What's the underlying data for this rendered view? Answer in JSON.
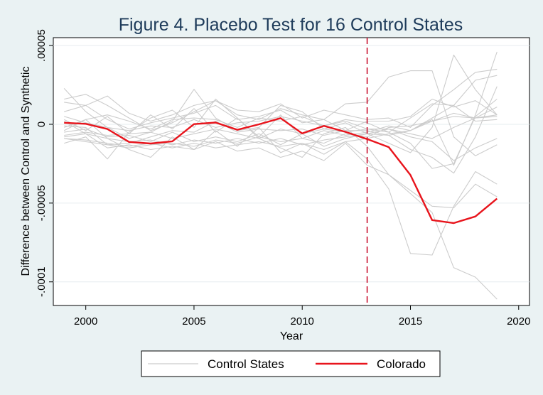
{
  "chart_data": {
    "type": "line",
    "title": "Figure 4. Placebo Test for 16 Control States",
    "xlabel": "Year",
    "ylabel": "Difference between Control and Synthetic",
    "xlim": [
      1998.5,
      2020.5
    ],
    "ylim": [
      -0.000115,
      5.5e-05
    ],
    "xticks": [
      2000,
      2005,
      2010,
      2015,
      2020
    ],
    "xtick_labels": [
      "2000",
      "2005",
      "2010",
      "2015",
      "2020"
    ],
    "yticks": [
      -0.0001,
      -5e-05,
      0,
      5e-05
    ],
    "ytick_labels": [
      "-.0001",
      "-.00005",
      "0",
      ".00005"
    ],
    "grid": "horizontal",
    "vline": {
      "x": 2013,
      "style": "dashed",
      "color": "#c8102e"
    },
    "legend": {
      "position": "bottom",
      "entries": [
        "Control States",
        "Colorado"
      ]
    },
    "colors": {
      "control": "#cccccc",
      "treated": "#e8141c",
      "background": "#eaf2f3",
      "plot_background": "#ffffff",
      "title": "#1e3b5a"
    },
    "x": [
      1999,
      2000,
      2001,
      2002,
      2003,
      2004,
      2005,
      2006,
      2007,
      2008,
      2009,
      2010,
      2011,
      2012,
      2013,
      2014,
      2015,
      2016,
      2017,
      2018,
      2019
    ],
    "series": [
      {
        "name": "Colorado",
        "role": "treated",
        "values": [
          1e-06,
          3e-07,
          -3e-06,
          -1.12e-05,
          -1.22e-05,
          -1.08e-05,
          1e-07,
          1.1e-06,
          -3.5e-06,
          0.0,
          3.9e-06,
          -5.8e-06,
          -1e-06,
          -4.8e-06,
          -9.4e-06,
          -1.45e-05,
          -3.22e-05,
          -6.08e-05,
          -6.27e-05,
          -5.85e-05,
          -4.72e-05
        ]
      },
      {
        "name": "",
        "role": "control",
        "values": [
          2.28e-05,
          8e-06,
          -2e-06,
          -9e-06,
          -5e-06,
          2e-06,
          2.22e-05,
          4e-06,
          -4e-06,
          -2e-06,
          1.2e-05,
          8e-06,
          -3e-06,
          1e-06,
          -6e-06,
          -1.2e-05,
          -1.8e-05,
          -2e-06,
          4.4e-05,
          2.2e-05,
          6e-06
        ]
      },
      {
        "name": "",
        "role": "control",
        "values": [
          1.6e-05,
          1.9e-05,
          1.2e-05,
          4e-06,
          -4e-06,
          1e-06,
          8e-06,
          1.5e-05,
          6e-06,
          3e-06,
          1e-05,
          6e-06,
          3e-06,
          1.3e-05,
          1.4e-05,
          3e-05,
          3.4e-05,
          3.4e-05,
          -8e-06,
          -2e-05,
          -1.3e-05
        ]
      },
      {
        "name": "",
        "role": "control",
        "values": [
          -1.2e-05,
          -8e-06,
          -2.2e-05,
          -5e-06,
          4e-06,
          9e-06,
          -2e-06,
          1.6e-05,
          4e-06,
          -9e-06,
          -1.5e-05,
          -2.1e-05,
          -6e-06,
          -2e-06,
          -1.4e-05,
          -3.2e-05,
          -4.4e-05,
          -5.6e-05,
          -9.1e-05,
          -9.7e-05,
          -0.000111
        ]
      },
      {
        "name": "",
        "role": "control",
        "values": [
          -4e-06,
          3e-06,
          -9e-06,
          -1.6e-05,
          -2.1e-05,
          -8e-06,
          -1.6e-05,
          -4e-06,
          -1.4e-05,
          -2e-06,
          -1.8e-05,
          -1.2e-05,
          -1.9e-05,
          -1.1e-05,
          -2.2e-05,
          -4.1e-05,
          -8.2e-05,
          -8.3e-05,
          -5.2e-05,
          -3e-05,
          -3.8e-05
        ]
      },
      {
        "name": "",
        "role": "control",
        "values": [
          -8e-06,
          -6e-06,
          -1.5e-05,
          -1.3e-05,
          -1.6e-05,
          -1.4e-05,
          -1.6e-05,
          -1.1e-05,
          -1.7e-05,
          -1.5e-05,
          -2.1e-05,
          -1.7e-05,
          -2.3e-05,
          -1.2e-05,
          -2.6e-05,
          -3.2e-05,
          -4.2e-05,
          -5.2e-05,
          -5.3e-05,
          -3.8e-05,
          -4.6e-05
        ]
      },
      {
        "name": "",
        "role": "control",
        "values": [
          3e-06,
          -4e-06,
          5e-06,
          -6e-06,
          6e-06,
          -3e-06,
          1e-05,
          -5e-06,
          4e-06,
          -8e-06,
          6e-06,
          -9e-06,
          -4e-06,
          -7e-06,
          -5e-06,
          -1e-06,
          -4e-06,
          3e-06,
          -2.6e-05,
          6e-06,
          4.6e-05
        ]
      },
      {
        "name": "",
        "role": "control",
        "values": [
          8e-06,
          1.2e-05,
          1.8e-05,
          7e-06,
          2e-06,
          6e-06,
          1.2e-05,
          1.5e-05,
          9e-06,
          8e-06,
          1.3e-05,
          4e-06,
          9e-06,
          6e-06,
          3e-06,
          4e-06,
          -2e-06,
          1.2e-05,
          2.2e-05,
          3.3e-05,
          3.5e-05
        ]
      },
      {
        "name": "",
        "role": "control",
        "values": [
          -2e-06,
          3e-06,
          6e-06,
          2e-06,
          -3e-06,
          3e-06,
          4e-06,
          3e-06,
          -2e-06,
          4e-06,
          2e-06,
          5e-06,
          -1e-06,
          3e-06,
          1e-06,
          -5e-06,
          -1.2e-05,
          -2.8e-05,
          -2.5e-05,
          5e-06,
          1.6e-05
        ]
      },
      {
        "name": "",
        "role": "control",
        "values": [
          -1e-06,
          -2e-06,
          -1.3e-05,
          -1.2e-05,
          -8e-06,
          -4e-06,
          -5e-06,
          2e-06,
          -5e-06,
          -3e-06,
          -4e-06,
          -3e-06,
          -7e-06,
          -4e-06,
          -4e-06,
          -7e-06,
          -1.6e-05,
          -2.1e-05,
          -3.1e-05,
          -8e-06,
          2.4e-05
        ]
      },
      {
        "name": "",
        "role": "control",
        "values": [
          -5e-06,
          -3e-06,
          -8e-06,
          -7e-06,
          -1.1e-05,
          -5e-06,
          -1.1e-05,
          -8e-06,
          -1.1e-05,
          -6e-06,
          -1.3e-05,
          -6e-06,
          -1.4e-05,
          -9e-06,
          -6e-06,
          -7e-06,
          -4e-06,
          2e-06,
          7e-06,
          4e-06,
          6e-06
        ]
      },
      {
        "name": "",
        "role": "control",
        "values": [
          5e-06,
          1e-06,
          -2e-06,
          -4e-06,
          -1e-06,
          -2e-06,
          3e-06,
          -2e-06,
          1e-06,
          2e-06,
          5e-06,
          2e-06,
          -1e-06,
          2e-06,
          -3e-06,
          -3e-06,
          -8e-06,
          -1.1e-05,
          -2.3e-05,
          -1.5e-05,
          -9e-06
        ]
      },
      {
        "name": "",
        "role": "control",
        "values": [
          -9e-06,
          -1e-05,
          -1.2e-05,
          -1.4e-05,
          -1.2e-05,
          -1.5e-05,
          -1.2e-05,
          -1.5e-05,
          -1.3e-05,
          -1.1e-05,
          -1.4e-05,
          -1.2e-05,
          -1.6e-05,
          -1.1e-05,
          -9e-06,
          -6e-06,
          -4e-06,
          4e-06,
          1.2e-05,
          2.8e-05,
          3.1e-05
        ]
      },
      {
        "name": "",
        "role": "control",
        "values": [
          2e-06,
          -6e-06,
          -9e-06,
          -1.1e-05,
          -1e-05,
          -1.3e-05,
          -1e-05,
          -1.2e-05,
          -9e-06,
          -1.2e-05,
          -9e-06,
          -1.3e-05,
          -1e-05,
          -8e-06,
          -6e-06,
          -3e-06,
          -6e-06,
          -9e-06,
          -2e-06,
          4e-06,
          1.1e-05
        ]
      },
      {
        "name": "",
        "role": "control",
        "values": [
          -7e-06,
          -5e-06,
          -7e-06,
          -6e-06,
          -5e-06,
          -9e-06,
          -6e-06,
          -3e-06,
          -6e-06,
          -9e-06,
          -3e-06,
          -6e-06,
          -3e-06,
          -5e-06,
          -3e-06,
          -5e-06,
          4e-06,
          1.3e-05,
          1.2e-05,
          2e-06,
          3e-06
        ]
      },
      {
        "name": "",
        "role": "control",
        "values": [
          -9e-06,
          -1.1e-05,
          -1.3e-05,
          -1.5e-05,
          -1.3e-05,
          -1.2e-05,
          -1.4e-05,
          -1e-05,
          -1.2e-05,
          -8e-06,
          -1.1e-05,
          -9e-06,
          -1.2e-05,
          -6e-06,
          -8e-06,
          -2e-06,
          -1e-06,
          2e-06,
          5e-06,
          4e-06,
          5e-06
        ]
      },
      {
        "name": "",
        "role": "control",
        "values": [
          1.4e-05,
          1.2e-05,
          3e-06,
          -3e-06,
          1e-06,
          4e-06,
          7e-06,
          1.2e-05,
          3e-06,
          5e-06,
          9e-06,
          1e-06,
          3e-06,
          -4e-06,
          2e-06,
          2e-06,
          5e-06,
          1.6e-05,
          1.1e-05,
          1.5e-05,
          6e-06
        ]
      }
    ]
  }
}
